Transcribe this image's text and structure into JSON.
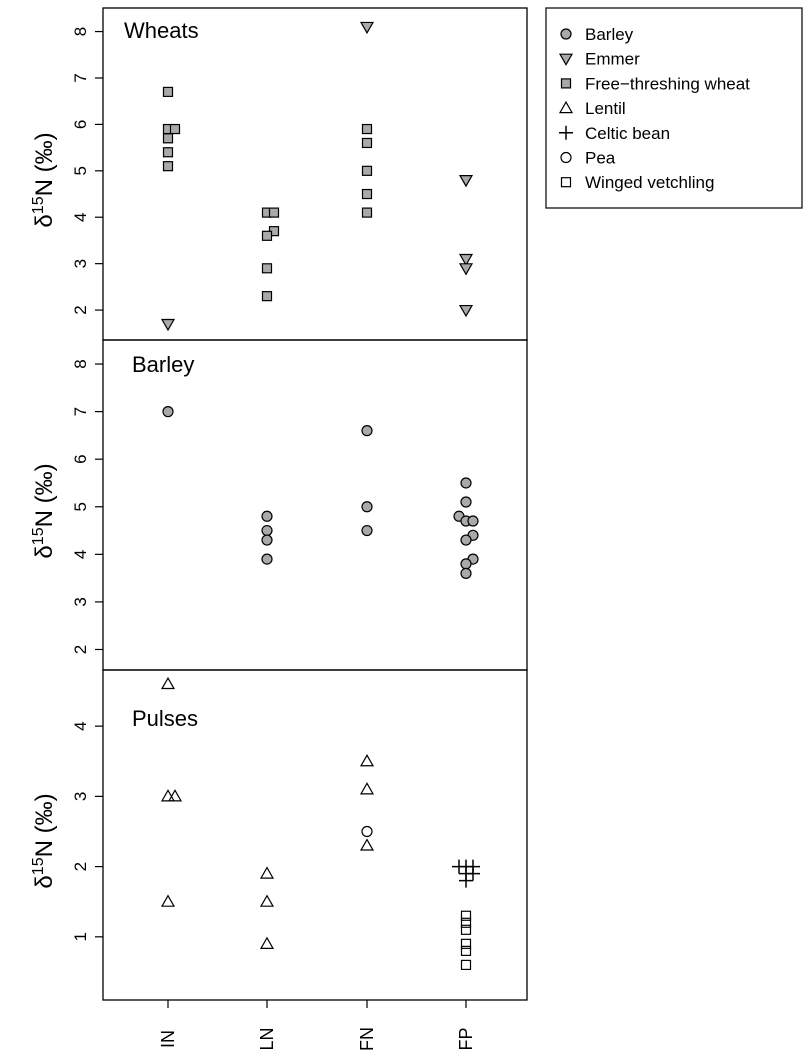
{
  "chart_data": [
    {
      "type": "scatter",
      "title": "Wheats",
      "ylabel_main": "δ",
      "ylabel_sup": "15",
      "ylabel_rest": "N (‰)",
      "ylim": [
        1.7,
        8.4
      ],
      "yticks": [
        2,
        3,
        4,
        5,
        6,
        7,
        8
      ],
      "categories": [
        "IN",
        "LN",
        "FN",
        "FP"
      ],
      "series": [
        {
          "name": "Free−threshing wheat",
          "marker": "square-filled",
          "points": [
            {
              "x": "IN",
              "y": 6.7,
              "jitter": 0
            },
            {
              "x": "IN",
              "y": 5.9,
              "jitter": 0
            },
            {
              "x": "IN",
              "y": 5.9,
              "jitter": 1
            },
            {
              "x": "IN",
              "y": 5.7,
              "jitter": 0
            },
            {
              "x": "IN",
              "y": 5.4,
              "jitter": 0
            },
            {
              "x": "IN",
              "y": 5.1,
              "jitter": 0
            },
            {
              "x": "LN",
              "y": 4.1,
              "jitter": 0
            },
            {
              "x": "LN",
              "y": 4.1,
              "jitter": 1
            },
            {
              "x": "LN",
              "y": 3.7,
              "jitter": 1
            },
            {
              "x": "LN",
              "y": 3.6,
              "jitter": 0
            },
            {
              "x": "LN",
              "y": 2.9,
              "jitter": 0
            },
            {
              "x": "LN",
              "y": 2.3,
              "jitter": 0
            },
            {
              "x": "FN",
              "y": 5.9,
              "jitter": 0
            },
            {
              "x": "FN",
              "y": 5.6,
              "jitter": 0
            },
            {
              "x": "FN",
              "y": 5.0,
              "jitter": 0
            },
            {
              "x": "FN",
              "y": 4.5,
              "jitter": 0
            },
            {
              "x": "FN",
              "y": 4.1,
              "jitter": 0
            }
          ]
        },
        {
          "name": "Emmer",
          "marker": "triangle-down-filled",
          "points": [
            {
              "x": "IN",
              "y": 1.7,
              "jitter": 0
            },
            {
              "x": "FN",
              "y": 8.1,
              "jitter": 0
            },
            {
              "x": "FP",
              "y": 4.8,
              "jitter": 0
            },
            {
              "x": "FP",
              "y": 3.1,
              "jitter": 0
            },
            {
              "x": "FP",
              "y": 2.9,
              "jitter": 0
            },
            {
              "x": "FP",
              "y": 2.0,
              "jitter": 0
            }
          ]
        }
      ]
    },
    {
      "type": "scatter",
      "title": "Barley",
      "ylabel_main": "δ",
      "ylabel_sup": "15",
      "ylabel_rest": "N (‰)",
      "ylim": [
        1.8,
        8.4
      ],
      "yticks": [
        2,
        3,
        4,
        5,
        6,
        7,
        8
      ],
      "categories": [
        "IN",
        "LN",
        "FN",
        "FP"
      ],
      "series": [
        {
          "name": "Barley",
          "marker": "circle-filled",
          "points": [
            {
              "x": "IN",
              "y": 7.0,
              "jitter": 0
            },
            {
              "x": "LN",
              "y": 4.8,
              "jitter": 0
            },
            {
              "x": "LN",
              "y": 4.5,
              "jitter": 0
            },
            {
              "x": "LN",
              "y": 4.3,
              "jitter": 0
            },
            {
              "x": "LN",
              "y": 3.9,
              "jitter": 0
            },
            {
              "x": "FN",
              "y": 6.6,
              "jitter": 0
            },
            {
              "x": "FN",
              "y": 5.0,
              "jitter": 0
            },
            {
              "x": "FN",
              "y": 4.5,
              "jitter": 0
            },
            {
              "x": "FP",
              "y": 5.5,
              "jitter": 0
            },
            {
              "x": "FP",
              "y": 5.1,
              "jitter": 0
            },
            {
              "x": "FP",
              "y": 4.8,
              "jitter": -1
            },
            {
              "x": "FP",
              "y": 4.7,
              "jitter": 0
            },
            {
              "x": "FP",
              "y": 4.7,
              "jitter": 1
            },
            {
              "x": "FP",
              "y": 4.4,
              "jitter": 1
            },
            {
              "x": "FP",
              "y": 4.3,
              "jitter": 0
            },
            {
              "x": "FP",
              "y": 3.9,
              "jitter": 1
            },
            {
              "x": "FP",
              "y": 3.8,
              "jitter": 0
            },
            {
              "x": "FP",
              "y": 3.6,
              "jitter": 0
            }
          ]
        }
      ]
    },
    {
      "type": "scatter",
      "title": "Pulses",
      "ylabel_main": "δ",
      "ylabel_sup": "15",
      "ylabel_rest": "N (‰)",
      "ylim": [
        0.2,
        4.7
      ],
      "yticks": [
        1,
        2,
        3,
        4
      ],
      "categories": [
        "IN",
        "LN",
        "FN",
        "FP"
      ],
      "series": [
        {
          "name": "Lentil",
          "marker": "triangle-up-open",
          "points": [
            {
              "x": "IN",
              "y": 4.6,
              "jitter": 0
            },
            {
              "x": "IN",
              "y": 3.0,
              "jitter": 0
            },
            {
              "x": "IN",
              "y": 3.0,
              "jitter": 1
            },
            {
              "x": "IN",
              "y": 1.5,
              "jitter": 0
            },
            {
              "x": "LN",
              "y": 1.9,
              "jitter": 0
            },
            {
              "x": "LN",
              "y": 1.5,
              "jitter": 0
            },
            {
              "x": "LN",
              "y": 0.9,
              "jitter": 0
            },
            {
              "x": "FN",
              "y": 3.5,
              "jitter": 0
            },
            {
              "x": "FN",
              "y": 3.1,
              "jitter": 0
            },
            {
              "x": "FN",
              "y": 2.3,
              "jitter": 0
            }
          ]
        },
        {
          "name": "Pea",
          "marker": "circle-open",
          "points": [
            {
              "x": "FN",
              "y": 2.5,
              "jitter": 0
            }
          ]
        },
        {
          "name": "Celtic bean",
          "marker": "plus",
          "points": [
            {
              "x": "FP",
              "y": 2.0,
              "jitter": -1
            },
            {
              "x": "FP",
              "y": 2.0,
              "jitter": 0
            },
            {
              "x": "FP",
              "y": 2.0,
              "jitter": 1
            },
            {
              "x": "FP",
              "y": 1.9,
              "jitter": 0
            },
            {
              "x": "FP",
              "y": 1.9,
              "jitter": 1
            },
            {
              "x": "FP",
              "y": 1.8,
              "jitter": 0
            }
          ]
        },
        {
          "name": "Winged vetchling",
          "marker": "square-open",
          "points": [
            {
              "x": "FP",
              "y": 1.3,
              "jitter": 0
            },
            {
              "x": "FP",
              "y": 1.2,
              "jitter": 0
            },
            {
              "x": "FP",
              "y": 1.1,
              "jitter": 0
            },
            {
              "x": "FP",
              "y": 0.9,
              "jitter": 0
            },
            {
              "x": "FP",
              "y": 0.8,
              "jitter": 0
            },
            {
              "x": "FP",
              "y": 0.6,
              "jitter": 0
            }
          ]
        }
      ]
    }
  ],
  "legend": {
    "placement": "top-right",
    "entries": [
      {
        "label": "Barley",
        "marker": "circle-filled"
      },
      {
        "label": "Emmer",
        "marker": "triangle-down-filled"
      },
      {
        "label": "Free−threshing wheat",
        "marker": "square-filled"
      },
      {
        "label": "Lentil",
        "marker": "triangle-up-open"
      },
      {
        "label": "Celtic bean",
        "marker": "plus"
      },
      {
        "label": "Pea",
        "marker": "circle-open"
      },
      {
        "label": "Winged vetchling",
        "marker": "square-open"
      }
    ]
  },
  "colors": {
    "filled_marker": "#a9a9a9",
    "stroke": "#000000",
    "background": "#ffffff"
  }
}
